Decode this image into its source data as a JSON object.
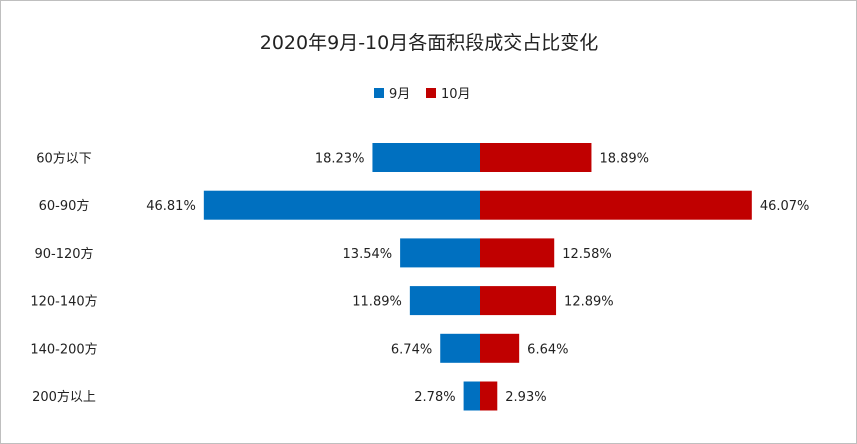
{
  "colors": {
    "sep": "#0070C0",
    "oct": "#C00000",
    "text": "#222222"
  },
  "chart_data": {
    "type": "bar",
    "orientation": "horizontal-diverging",
    "title": "2020年9月-10月各面积段成交占比变化",
    "categories": [
      "60方以下",
      "60-90方",
      "90-120方",
      "120-140方",
      "140-200方",
      "200方以上"
    ],
    "series": [
      {
        "name": "9月",
        "values": [
          18.23,
          46.81,
          13.54,
          11.89,
          6.74,
          2.78
        ],
        "labels": [
          "18.23%",
          "46.81%",
          "13.54%",
          "11.89%",
          "6.74%",
          "2.78%"
        ]
      },
      {
        "name": "10月",
        "values": [
          18.89,
          46.07,
          12.58,
          12.89,
          6.64,
          2.93
        ],
        "labels": [
          "18.89%",
          "46.07%",
          "12.58%",
          "12.89%",
          "6.64%",
          "2.93%"
        ]
      }
    ],
    "legend_position": "top-center",
    "grid": false,
    "value_unit": "%"
  }
}
